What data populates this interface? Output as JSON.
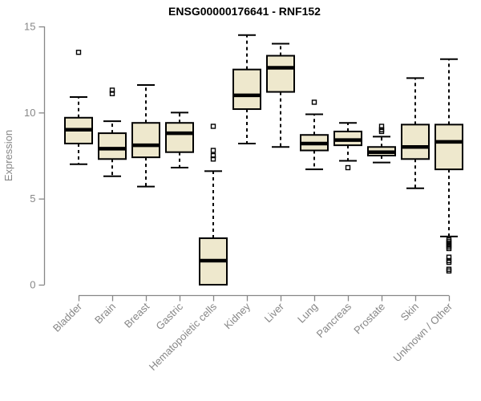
{
  "title": "ENSG00000176641 - RNF152",
  "chart_data": {
    "type": "boxplot",
    "title": "ENSG00000176641 - RNF152",
    "xlabel": "",
    "ylabel": "Expression",
    "ylim": [
      0,
      15
    ],
    "yticks": [
      0,
      5,
      10,
      15
    ],
    "grid": false,
    "legend": "none",
    "colors": {
      "box_fill": "#EEE8CD",
      "box_stroke": "#000000",
      "median": "#000000",
      "whisker": "#000000",
      "axis": "#878787",
      "title": "#000000",
      "background": "#ffffff"
    },
    "categories": [
      "Bladder",
      "Brain",
      "Breast",
      "Gastric",
      "Hematopoietic cells",
      "Kidney",
      "Liver",
      "Lung",
      "Pancreas",
      "Prostate",
      "Skin",
      "Unknown / Other"
    ],
    "series": [
      {
        "name": "Bladder",
        "whislo": 7.0,
        "q1": 8.2,
        "med": 9.0,
        "q3": 9.7,
        "whishi": 10.9,
        "outliers": [
          13.5
        ]
      },
      {
        "name": "Brain",
        "whislo": 6.3,
        "q1": 7.3,
        "med": 7.9,
        "q3": 8.8,
        "whishi": 9.5,
        "outliers": [
          11.1,
          11.3
        ]
      },
      {
        "name": "Breast",
        "whislo": 5.7,
        "q1": 7.4,
        "med": 8.1,
        "q3": 9.4,
        "whishi": 11.6,
        "outliers": []
      },
      {
        "name": "Gastric",
        "whislo": 6.8,
        "q1": 7.7,
        "med": 8.8,
        "q3": 9.4,
        "whishi": 10.0,
        "outliers": []
      },
      {
        "name": "Hematopoietic cells",
        "whislo": 0.0,
        "q1": 0.0,
        "med": 1.4,
        "q3": 2.7,
        "whishi": 6.6,
        "outliers": [
          7.3,
          7.5,
          7.8,
          9.2
        ]
      },
      {
        "name": "Kidney",
        "whislo": 8.2,
        "q1": 10.2,
        "med": 11.0,
        "q3": 12.5,
        "whishi": 14.5,
        "outliers": []
      },
      {
        "name": "Liver",
        "whislo": 8.0,
        "q1": 11.2,
        "med": 12.6,
        "q3": 13.3,
        "whishi": 14.0,
        "outliers": []
      },
      {
        "name": "Lung",
        "whislo": 6.7,
        "q1": 7.8,
        "med": 8.2,
        "q3": 8.7,
        "whishi": 9.9,
        "outliers": [
          10.6
        ]
      },
      {
        "name": "Pancreas",
        "whislo": 7.2,
        "q1": 8.1,
        "med": 8.4,
        "q3": 8.9,
        "whishi": 9.4,
        "outliers": [
          6.8
        ]
      },
      {
        "name": "Prostate",
        "whislo": 7.1,
        "q1": 7.5,
        "med": 7.7,
        "q3": 8.0,
        "whishi": 8.6,
        "outliers": [
          8.9,
          9.0,
          9.2
        ]
      },
      {
        "name": "Skin",
        "whislo": 5.6,
        "q1": 7.3,
        "med": 8.0,
        "q3": 9.3,
        "whishi": 12.0,
        "outliers": []
      },
      {
        "name": "Unknown / Other",
        "whislo": 2.8,
        "q1": 6.7,
        "med": 8.3,
        "q3": 9.3,
        "whishi": 13.1,
        "outliers": [
          2.6,
          2.5,
          2.4,
          2.3,
          2.2,
          2.1,
          1.6,
          1.4,
          1.3,
          0.9,
          0.8
        ]
      }
    ]
  }
}
